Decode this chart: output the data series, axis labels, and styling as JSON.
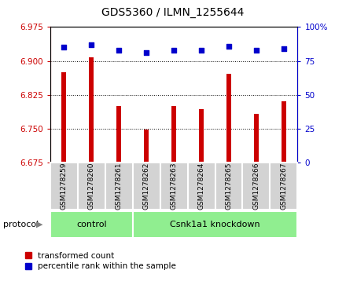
{
  "title": "GDS5360 / ILMN_1255644",
  "samples": [
    "GSM1278259",
    "GSM1278260",
    "GSM1278261",
    "GSM1278262",
    "GSM1278263",
    "GSM1278264",
    "GSM1278265",
    "GSM1278266",
    "GSM1278267"
  ],
  "transformed_count": [
    6.875,
    6.908,
    6.8,
    6.748,
    6.8,
    6.793,
    6.872,
    6.783,
    6.81
  ],
  "percentile_rank": [
    85,
    87,
    83,
    81,
    83,
    83,
    86,
    83,
    84
  ],
  "ylim": [
    6.675,
    6.975
  ],
  "y2lim": [
    0,
    100
  ],
  "yticks": [
    6.675,
    6.75,
    6.825,
    6.9,
    6.975
  ],
  "y2ticks": [
    0,
    25,
    50,
    75,
    100
  ],
  "bar_color": "#cc0000",
  "scatter_color": "#0000cc",
  "group_boundary": 3,
  "control_label": "control",
  "knockdown_label": "Csnk1a1 knockdown",
  "protocol_label": "protocol",
  "legend_bar_label": "transformed count",
  "legend_scatter_label": "percentile rank within the sample",
  "sample_box_color": "#d3d3d3",
  "group_box_color": "#90ee90",
  "title_fontsize": 10,
  "axis_fontsize": 7.5,
  "label_fontsize": 6.5,
  "group_fontsize": 8,
  "legend_fontsize": 7.5
}
